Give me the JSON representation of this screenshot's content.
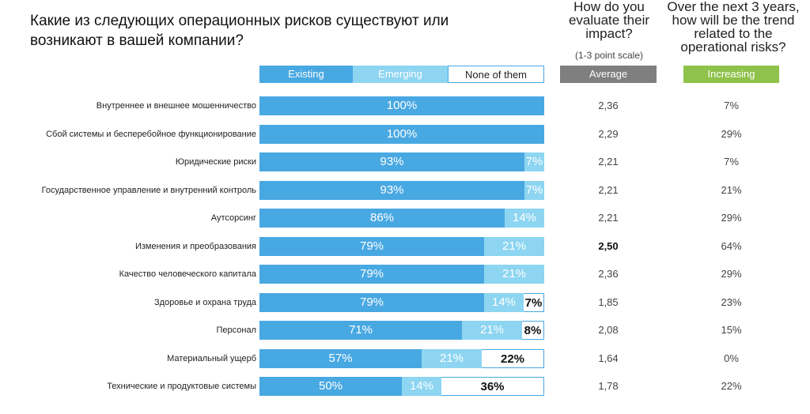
{
  "title": "Какие из следующих операционных рисков существуют или возникают в вашей компании?",
  "col_avg": {
    "title": "How do you evaluate their impact?",
    "subtitle": "(1-3 point scale)",
    "header": "Average"
  },
  "col_trend": {
    "title": "Over the next 3 years, how will be the trend related to the operational risks?",
    "header": "Increasing"
  },
  "colors": {
    "existing": "#48a8e2",
    "emerging": "#8dd5f1",
    "none": "#ffffff",
    "average_header": "#7f7f7f",
    "increasing_header": "#8ec24a"
  },
  "chart_data": {
    "type": "bar",
    "orientation": "horizontal",
    "stacked": true,
    "xlim": [
      0,
      100
    ],
    "legend": [
      "Existing",
      "Emerging",
      "None of them"
    ],
    "categories": [
      "Внутреннее и внешнее мошенничество",
      "Сбой системы и бесперебойное функционирование",
      "Юридические риски",
      "Государственное управление и внутренний контроль",
      "Аутсорсинг",
      "Изменения и преобразования",
      "Качество человеческого капитала",
      "Здоровье и охрана труда",
      "Персонал",
      "Материальный ущерб",
      "Технические и продуктовые системы"
    ],
    "series": [
      {
        "name": "Existing",
        "values": [
          100,
          100,
          93,
          93,
          86,
          79,
          79,
          79,
          71,
          57,
          50
        ],
        "labels": [
          "100%",
          "100%",
          "93%",
          "93%",
          "86%",
          "79%",
          "79%",
          "79%",
          "71%",
          "57%",
          "50%"
        ]
      },
      {
        "name": "Emerging",
        "values": [
          0,
          0,
          7,
          7,
          14,
          21,
          21,
          14,
          21,
          21,
          14
        ],
        "labels": [
          "",
          "",
          "7%",
          "7%",
          "14%",
          "21%",
          "21%",
          "14%",
          "21%",
          "21%",
          "14%"
        ]
      },
      {
        "name": "None of them",
        "values": [
          0,
          0,
          0,
          0,
          0,
          0,
          0,
          7,
          8,
          22,
          36
        ],
        "labels": [
          "",
          "",
          "",
          "",
          "",
          "",
          "",
          "7%",
          "8%",
          "22%",
          "36%"
        ]
      }
    ],
    "average": [
      "2,36",
      "2,29",
      "2,21",
      "2,21",
      "2,21",
      "2,50",
      "2,36",
      "1,85",
      "2,08",
      "1,64",
      "1,78"
    ],
    "average_bold": [
      false,
      false,
      false,
      false,
      false,
      true,
      false,
      false,
      false,
      false,
      false
    ],
    "increasing": [
      "7%",
      "29%",
      "7%",
      "21%",
      "29%",
      "64%",
      "29%",
      "23%",
      "15%",
      "0%",
      "22%"
    ]
  }
}
